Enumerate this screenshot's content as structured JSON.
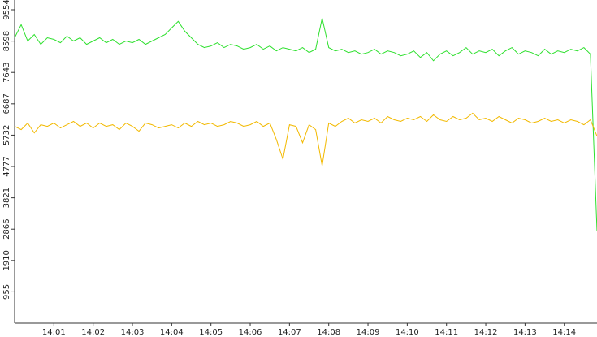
{
  "chart_data": {
    "type": "line",
    "categories": [
      null,
      null,
      null,
      null,
      null,
      null,
      "14:01",
      null,
      null,
      null,
      null,
      null,
      "14:02",
      null,
      null,
      null,
      null,
      null,
      "14:03",
      null,
      null,
      null,
      null,
      null,
      "14:04",
      null,
      null,
      null,
      null,
      null,
      "14:05",
      null,
      null,
      null,
      null,
      null,
      "14:06",
      null,
      null,
      null,
      null,
      null,
      "14:07",
      null,
      null,
      null,
      null,
      null,
      "14:08",
      null,
      null,
      null,
      null,
      null,
      "14:09",
      null,
      null,
      null,
      null,
      null,
      "14:10",
      null,
      null,
      null,
      null,
      null,
      "14:11",
      null,
      null,
      null,
      null,
      null,
      "14:12",
      null,
      null,
      null,
      null,
      null,
      "14:13",
      null,
      null,
      null,
      null,
      null,
      "14:14",
      null,
      null,
      null,
      null,
      null
    ],
    "series": [
      {
        "color": "#2ee02e",
        "values": [
          8700,
          9100,
          8600,
          8800,
          8500,
          8700,
          8650,
          8550,
          8750,
          8600,
          8700,
          8500,
          8600,
          8700,
          8550,
          8650,
          8500,
          8600,
          8550,
          8650,
          8500,
          8600,
          8700,
          8800,
          9000,
          9200,
          8900,
          8700,
          8500,
          8400,
          8450,
          8550,
          8400,
          8500,
          8450,
          8350,
          8400,
          8500,
          8350,
          8450,
          8300,
          8400,
          8350,
          8300,
          8400,
          8250,
          8350,
          9300,
          8400,
          8300,
          8350,
          8250,
          8300,
          8200,
          8250,
          8350,
          8200,
          8300,
          8250,
          8150,
          8200,
          8300,
          8100,
          8250,
          8000,
          8200,
          8300,
          8150,
          8250,
          8400,
          8200,
          8300,
          8250,
          8350,
          8150,
          8300,
          8400,
          8200,
          8300,
          8250,
          8150,
          8350,
          8200,
          8300,
          8250,
          8350,
          8300,
          8400,
          8200,
          2800
        ]
      },
      {
        "color": "#f2b900",
        "values": [
          6000,
          5900,
          6100,
          5800,
          6050,
          6000,
          6100,
          5950,
          6050,
          6150,
          6000,
          6100,
          5950,
          6100,
          6000,
          6050,
          5900,
          6100,
          6000,
          5850,
          6100,
          6050,
          5950,
          6000,
          6050,
          5950,
          6100,
          6000,
          6150,
          6050,
          6100,
          6000,
          6050,
          6150,
          6100,
          6000,
          6050,
          6150,
          6000,
          6100,
          5600,
          5000,
          6050,
          6000,
          5500,
          6050,
          5900,
          4800,
          6100,
          6000,
          6150,
          6250,
          6100,
          6200,
          6150,
          6250,
          6100,
          6300,
          6200,
          6150,
          6250,
          6200,
          6300,
          6150,
          6350,
          6200,
          6150,
          6300,
          6200,
          6250,
          6400,
          6200,
          6250,
          6150,
          6300,
          6200,
          6100,
          6250,
          6200,
          6100,
          6150,
          6250,
          6150,
          6200,
          6100,
          6200,
          6150,
          6050,
          6200,
          5700
        ]
      }
    ],
    "ylim": [
      0,
      9554
    ],
    "yticks": [
      955,
      1910,
      2866,
      3821,
      4777,
      5732,
      6687,
      7643,
      8598,
      9554
    ]
  }
}
